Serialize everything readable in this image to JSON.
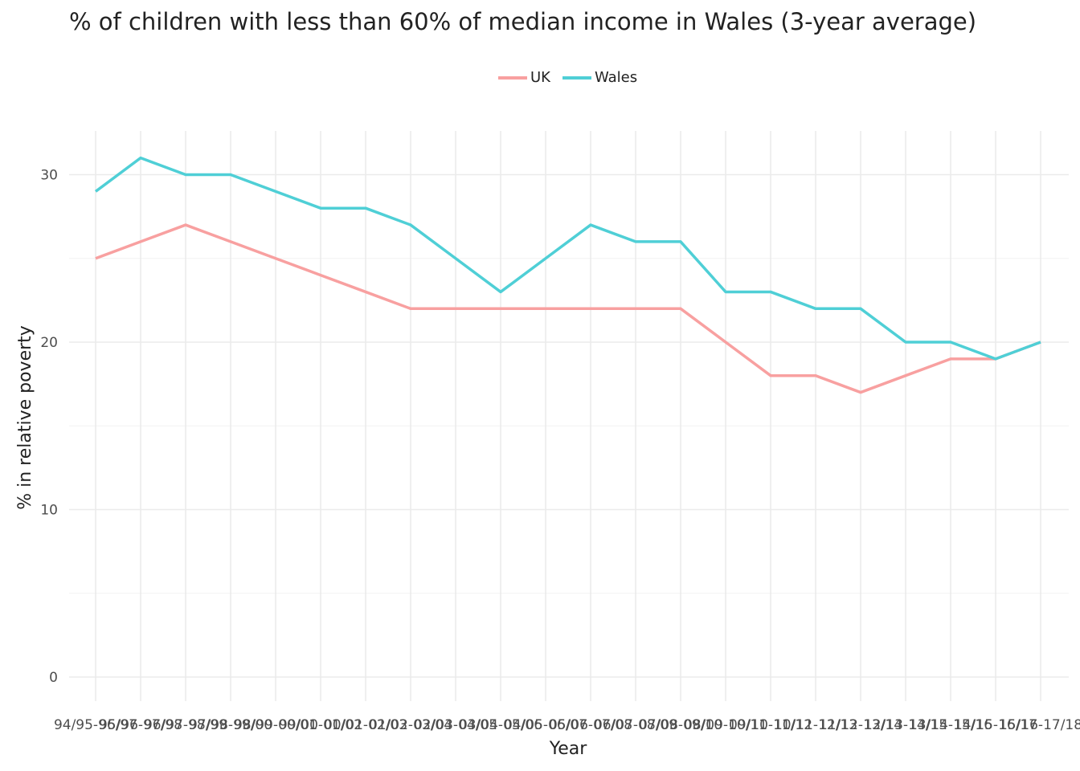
{
  "chart_data": {
    "type": "line",
    "title": "% of children with less than 60% of median income in Wales (3-year average)",
    "xlabel": "Year",
    "ylabel": "% in relative poverty",
    "x": [
      "94/95-96/97",
      "95/96-97/98",
      "96/97-98/99",
      "97/98-99/00",
      "98/99-00/01",
      "99/00-01/02",
      "00/01-02/03",
      "01/02-03/04",
      "02/03-04/05",
      "03/04-05/06",
      "04/05-06/07",
      "05/06-07/08",
      "06/07-08/09",
      "07/08-09/10",
      "08/09-10/11",
      "09/10-11/12",
      "10/11-12/13",
      "11/12-13/14",
      "12/13-14/15",
      "13/14-15/16",
      "14/15-16/17",
      "15/16-17/18"
    ],
    "series": [
      {
        "name": "UK",
        "color": "#f8a0a0",
        "values": [
          25,
          26,
          27,
          26,
          25,
          24,
          23,
          22,
          22,
          22,
          22,
          22,
          22,
          22,
          20,
          18,
          18,
          17,
          18,
          19,
          19,
          20
        ]
      },
      {
        "name": "Wales",
        "color": "#4fcfd6",
        "values": [
          29,
          31,
          30,
          30,
          29,
          28,
          28,
          27,
          25,
          23,
          25,
          27,
          26,
          26,
          23,
          23,
          22,
          22,
          20,
          20,
          19,
          20
        ]
      }
    ],
    "yticks": [
      0,
      10,
      20,
      30
    ],
    "ylim": [
      -1.5,
      32.5
    ],
    "grid": true,
    "legend": "top-center"
  }
}
